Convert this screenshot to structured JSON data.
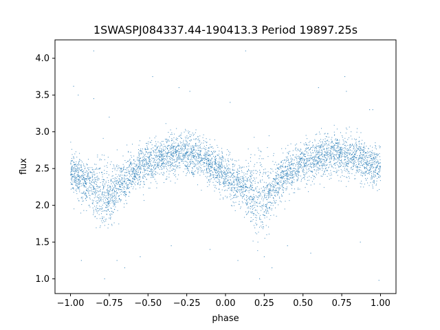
{
  "chart_data": {
    "type": "scatter",
    "title": "1SWASPJ084337.44-190413.3 Period 19897.25s",
    "xlabel": "phase",
    "ylabel": "flux",
    "xlim": [
      -1.1,
      1.1
    ],
    "ylim": [
      0.8,
      4.25
    ],
    "xticks": [
      -1.0,
      -0.75,
      -0.5,
      -0.25,
      0.0,
      0.25,
      0.5,
      0.75,
      1.0
    ],
    "xtick_labels": [
      "−1.00",
      "−0.75",
      "−0.50",
      "−0.25",
      "0.00",
      "0.25",
      "0.50",
      "0.75",
      "1.00"
    ],
    "yticks": [
      1.0,
      1.5,
      2.0,
      2.5,
      3.0,
      3.5,
      4.0
    ],
    "ytick_labels": [
      "1.0",
      "1.5",
      "2.0",
      "2.5",
      "3.0",
      "3.5",
      "4.0"
    ],
    "grid": false,
    "marker_color": "#1f77b4",
    "period_seconds": 19897.25,
    "phase_range": [
      -1.0,
      1.0
    ],
    "light_curve_profile": {
      "phase": [
        -1.0,
        -0.9,
        -0.8,
        -0.75,
        -0.7,
        -0.6,
        -0.5,
        -0.4,
        -0.3,
        -0.25,
        -0.2,
        -0.1,
        0.0,
        0.1,
        0.2,
        0.25,
        0.3,
        0.4,
        0.5,
        0.6,
        0.7,
        0.75,
        0.8,
        0.9,
        1.0
      ],
      "median_flux": [
        2.48,
        2.3,
        2.15,
        2.1,
        2.25,
        2.45,
        2.57,
        2.64,
        2.7,
        2.7,
        2.67,
        2.57,
        2.42,
        2.25,
        2.1,
        2.1,
        2.25,
        2.45,
        2.57,
        2.65,
        2.7,
        2.7,
        2.68,
        2.6,
        2.5
      ]
    },
    "outliers": [
      [
        -0.85,
        4.1
      ],
      [
        0.13,
        4.1
      ],
      [
        -0.47,
        3.75
      ],
      [
        0.77,
        3.75
      ],
      [
        -0.98,
        3.62
      ],
      [
        -0.3,
        3.6
      ],
      [
        0.6,
        3.6
      ],
      [
        -0.23,
        3.55
      ],
      [
        0.78,
        3.55
      ],
      [
        -0.85,
        3.45
      ],
      [
        0.03,
        3.4
      ],
      [
        -0.95,
        3.5
      ],
      [
        0.95,
        3.3
      ],
      [
        -0.75,
        3.2
      ],
      [
        0.93,
        3.3
      ],
      [
        -0.65,
        1.15
      ],
      [
        0.3,
        1.15
      ],
      [
        -0.78,
        1.0
      ],
      [
        0.22,
        1.0
      ],
      [
        0.99,
        0.98
      ],
      [
        -0.7,
        1.25
      ],
      [
        0.25,
        1.3
      ],
      [
        -0.55,
        1.3
      ],
      [
        0.4,
        1.45
      ],
      [
        0.87,
        1.5
      ],
      [
        -0.93,
        1.25
      ],
      [
        -0.1,
        1.4
      ],
      [
        0.08,
        1.25
      ],
      [
        0.55,
        1.35
      ],
      [
        -0.35,
        1.45
      ]
    ]
  }
}
